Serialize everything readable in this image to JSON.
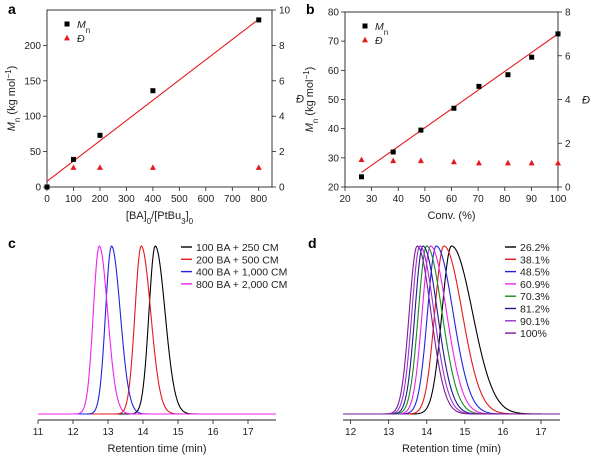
{
  "chart_data": [
    {
      "panel": "a",
      "type": "scatter",
      "xlabel": "[BA]0/[PtBu3]0",
      "xlim": [
        0,
        850
      ],
      "xticks": [
        0,
        100,
        200,
        300,
        400,
        500,
        600,
        700,
        800
      ],
      "ylabel_left": "Mn (kg mol−1)",
      "ylim_left": [
        0,
        250
      ],
      "yticks_left": [
        0,
        50,
        100,
        150,
        200
      ],
      "ylabel_right": "Đ",
      "ylim_right": [
        0,
        10
      ],
      "yticks_right": [
        0,
        2,
        4,
        6,
        8,
        10
      ],
      "series": [
        {
          "name": "Mn",
          "marker": "square",
          "color": "#000000",
          "axis": "left",
          "x": [
            0,
            100,
            200,
            400,
            800
          ],
          "y": [
            0,
            39,
            73,
            136,
            236
          ]
        },
        {
          "name": "Đ",
          "marker": "triangle",
          "color": "#e41a1c",
          "axis": "right",
          "x": [
            100,
            200,
            400,
            800
          ],
          "y": [
            1.1,
            1.1,
            1.1,
            1.1
          ]
        }
      ],
      "fit_line": {
        "color": "#e41a1c",
        "x": [
          0,
          800
        ],
        "y": [
          8,
          237
        ]
      },
      "legend": {
        "position": "top-left",
        "entries": [
          "Mn",
          "Đ"
        ]
      }
    },
    {
      "panel": "b",
      "type": "scatter",
      "xlabel": "Conv. (%)",
      "xlim": [
        20,
        100
      ],
      "xticks": [
        20,
        30,
        40,
        50,
        60,
        70,
        80,
        90,
        100
      ],
      "ylabel_left": "Mn (kg mol−1)",
      "ylim_left": [
        20,
        80
      ],
      "yticks_left": [
        20,
        30,
        40,
        50,
        60,
        70,
        80
      ],
      "ylabel_right": "Đ",
      "ylim_right": [
        0,
        8
      ],
      "yticks_right": [
        0,
        2,
        4,
        6,
        8
      ],
      "series": [
        {
          "name": "Mn",
          "marker": "square",
          "color": "#000000",
          "axis": "left",
          "x": [
            26.2,
            38.1,
            48.5,
            60.9,
            70.3,
            81.2,
            90.1,
            100
          ],
          "y": [
            23.5,
            32,
            39.5,
            47,
            54.5,
            58.5,
            64.5,
            72.5
          ]
        },
        {
          "name": "Đ",
          "marker": "triangle",
          "color": "#e41a1c",
          "axis": "right",
          "x": [
            26.2,
            38.1,
            48.5,
            60.9,
            70.3,
            81.2,
            90.1,
            100
          ],
          "y": [
            1.25,
            1.2,
            1.2,
            1.15,
            1.1,
            1.1,
            1.1,
            1.1
          ]
        }
      ],
      "fit_line": {
        "color": "#e41a1c",
        "x": [
          26.2,
          100
        ],
        "y": [
          25,
          72.5
        ]
      },
      "legend": {
        "position": "top-left",
        "entries": [
          "Mn",
          "Đ"
        ]
      }
    },
    {
      "panel": "c",
      "type": "line",
      "xlabel": "Retention time (min)",
      "xlim": [
        11,
        17.8
      ],
      "xticks": [
        11,
        12,
        13,
        14,
        15,
        16,
        17
      ],
      "series": [
        {
          "name": "100 BA + 250 CM",
          "color": "#000000",
          "peak": 14.35,
          "sigma_left": 0.18,
          "sigma_right": 0.28
        },
        {
          "name": "200 BA + 500 CM",
          "color": "#e41a1c",
          "peak": 13.95,
          "sigma_left": 0.18,
          "sigma_right": 0.27
        },
        {
          "name": "400 BA + 1,000 CM",
          "color": "#2222dd",
          "peak": 13.1,
          "sigma_left": 0.17,
          "sigma_right": 0.25
        },
        {
          "name": "800 BA + 2,000 CM",
          "color": "#ee22ee",
          "peak": 12.75,
          "sigma_left": 0.17,
          "sigma_right": 0.24
        }
      ],
      "legend": {
        "position": "top-right"
      }
    },
    {
      "panel": "d",
      "type": "line",
      "xlabel": "Retention time (min)",
      "xlim": [
        11.8,
        17.5
      ],
      "xticks": [
        12,
        13,
        14,
        15,
        16,
        17
      ],
      "series": [
        {
          "name": "26.2%",
          "color": "#000000",
          "peak": 14.65,
          "sigma_left": 0.25,
          "sigma_right": 0.55
        },
        {
          "name": "38.1%",
          "color": "#e41a1c",
          "peak": 14.45,
          "sigma_left": 0.24,
          "sigma_right": 0.48
        },
        {
          "name": "48.5%",
          "color": "#2222dd",
          "peak": 14.25,
          "sigma_left": 0.23,
          "sigma_right": 0.44
        },
        {
          "name": "60.9%",
          "color": "#ee22ee",
          "peak": 14.1,
          "sigma_left": 0.22,
          "sigma_right": 0.42
        },
        {
          "name": "70.3%",
          "color": "#1a8c1a",
          "peak": 14.0,
          "sigma_left": 0.22,
          "sigma_right": 0.4
        },
        {
          "name": "81.2%",
          "color": "#1c1c8c",
          "peak": 13.9,
          "sigma_left": 0.21,
          "sigma_right": 0.38
        },
        {
          "name": "90.1%",
          "color": "#9a30d0",
          "peak": 13.82,
          "sigma_left": 0.21,
          "sigma_right": 0.37
        },
        {
          "name": "100%",
          "color": "#7a1a9a",
          "peak": 13.75,
          "sigma_left": 0.21,
          "sigma_right": 0.36
        }
      ],
      "legend": {
        "position": "top-right"
      }
    }
  ]
}
